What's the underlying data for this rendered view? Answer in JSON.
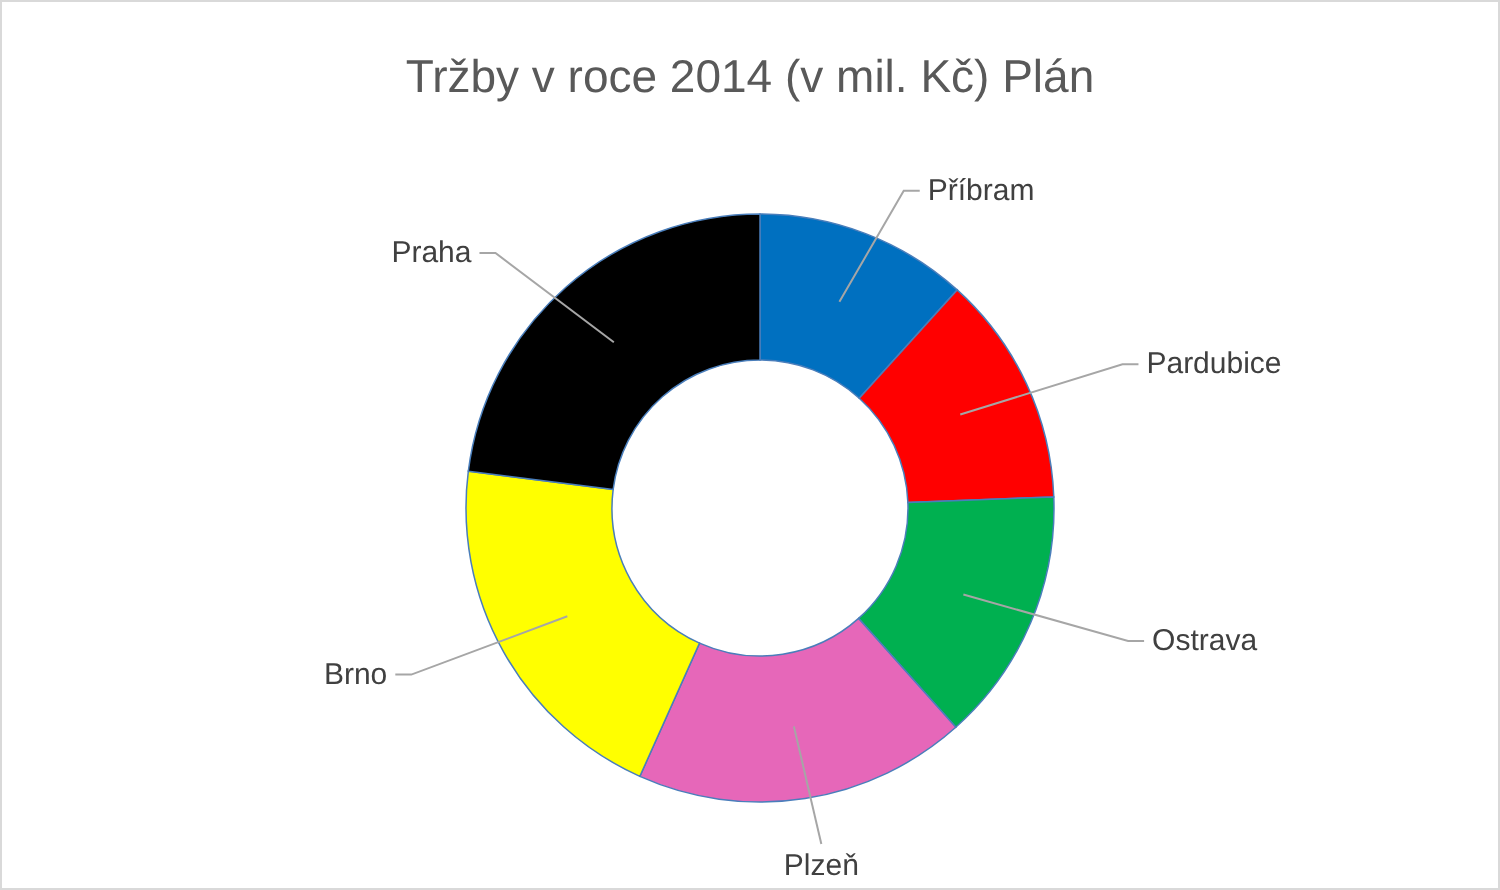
{
  "chart_data": {
    "type": "donut",
    "title": "Tržby v roce 2014 (v mil. Kč) Plán",
    "categories": [
      "Příbram",
      "Pardubice",
      "Ostrava",
      "Plzeň",
      "Brno",
      "Praha"
    ],
    "values": [
      11.7,
      12.7,
      14.0,
      18.3,
      20.3,
      23.0
    ],
    "colors": [
      "#0070c0",
      "#ff0000",
      "#00b050",
      "#e667b9",
      "#ffff00",
      "#000000"
    ]
  }
}
